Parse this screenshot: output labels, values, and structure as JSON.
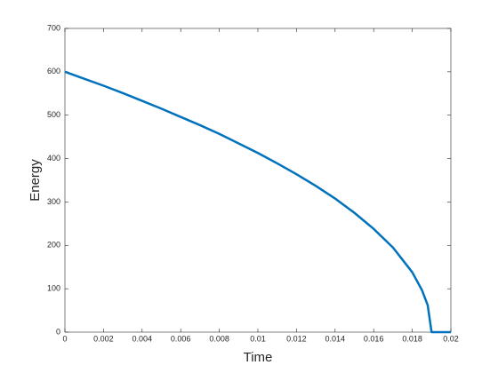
{
  "chart_data": {
    "type": "line",
    "x_label": "Time",
    "y_label": "Energy",
    "x": [
      0,
      0.001,
      0.002,
      0.003,
      0.004,
      0.005,
      0.006,
      0.007,
      0.008,
      0.009,
      0.01,
      0.011,
      0.012,
      0.013,
      0.014,
      0.015,
      0.016,
      0.017,
      0.018,
      0.0185,
      0.0188,
      0.019,
      0.02
    ],
    "values": [
      600,
      584,
      568,
      551,
      533,
      515,
      496,
      477,
      457,
      435,
      413,
      389,
      364,
      337,
      308,
      275,
      238,
      195,
      138,
      97,
      62,
      0,
      0
    ],
    "color": "#0072bd",
    "xlim": [
      0,
      0.02
    ],
    "xticks": [
      0,
      0.002,
      0.004,
      0.006,
      0.008,
      0.01,
      0.012,
      0.014,
      0.016,
      0.018,
      0.02
    ],
    "ylim": [
      0,
      700
    ],
    "yticks": [
      0,
      100,
      200,
      300,
      400,
      500,
      600,
      700
    ],
    "grid": false
  }
}
